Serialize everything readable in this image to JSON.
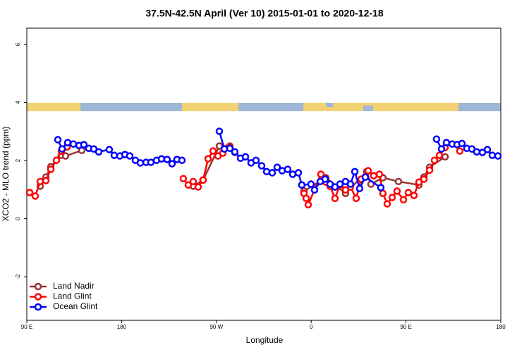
{
  "chart_data": {
    "type": "line",
    "title": "37.5N-42.5N April (Ver 10)   2015-01-01 to 2020-12-18",
    "xlabel": "Longitude",
    "ylabel": "XCO2 - MLO trend (ppm)",
    "xlim": [
      90,
      540
    ],
    "ylim": [
      -3.5,
      6.56
    ],
    "xticks": [
      {
        "value": 90,
        "label": "90 E"
      },
      180,
      {
        "value": 270,
        "label": "90 W"
      },
      {
        "value": 360,
        "label": "0"
      },
      {
        "value": 450,
        "label": "90 E"
      },
      {
        "value": 540,
        "label": "180"
      }
    ],
    "yticks": [
      -2,
      0,
      2,
      4,
      6
    ],
    "legend": "bottom-left",
    "series": [
      {
        "name": "Land Nadir",
        "color": "#993333",
        "x": [
          102.7,
          108.1,
          112.8,
          122.8,
          126.8,
          142.2,
          null,
          248.0,
          257.4,
          272.8,
          282.8,
          287.5,
          null,
          353.2,
          373.9,
          392.6,
          412.7,
          416.7,
          428.1,
          442.9,
          462.3,
          467.0,
          472.4,
          487.1
        ],
        "values": [
          1.12,
          1.43,
          1.79,
          2.18,
          2.16,
          2.35,
          null,
          1.12,
          1.33,
          2.5,
          2.5,
          2.28,
          null,
          0.95,
          1.41,
          0.87,
          1.62,
          1.19,
          1.41,
          1.28,
          1.16,
          1.43,
          1.77,
          2.13
        ]
      },
      {
        "name": "Land Glint",
        "color": "#ff0000",
        "x": [
          92.7,
          98.0,
          102.7,
          108.1,
          112.8,
          118.1,
          122.8,
          128.2,
          null,
          238.6,
          243.3,
          248.0,
          252.7,
          257.4,
          262.1,
          266.8,
          271.5,
          276.1,
          282.2,
          null,
          353.2,
          355.2,
          357.2,
          369.2,
          373.9,
          377.9,
          382.6,
          387.3,
          392.6,
          397.3,
          402.7,
          407.4,
          414.1,
          419.4,
          424.8,
          428.1,
          432.2,
          436.9,
          441.5,
          447.6,
          452.2,
          457.6,
          462.3,
          467.0,
          472.4,
          477.0,
          481.7,
          487.1,
          null,
          501.1
        ],
        "values": [
          0.9,
          0.78,
          1.28,
          1.31,
          1.7,
          2.01,
          2.33,
          2.47,
          null,
          1.38,
          1.16,
          1.28,
          1.09,
          1.33,
          2.06,
          2.33,
          2.16,
          2.26,
          2.47,
          null,
          0.87,
          0.7,
          0.48,
          1.53,
          1.26,
          1.12,
          0.7,
          1.16,
          0.99,
          1.09,
          0.7,
          1.36,
          1.65,
          1.48,
          1.53,
          0.87,
          0.51,
          0.73,
          0.95,
          0.65,
          0.9,
          0.8,
          1.26,
          1.36,
          1.67,
          2.01,
          2.18,
          2.45,
          null,
          2.33
        ]
      },
      {
        "name": "Ocean Glint",
        "color": "#0000ff",
        "x": [
          119.5,
          123.5,
          128.8,
          134.2,
          139.6,
          144.2,
          148.9,
          153.6,
          158.3,
          168.3,
          173.0,
          178.4,
          183.1,
          187.8,
          193.1,
          197.8,
          203.2,
          207.8,
          213.2,
          217.9,
          223.2,
          227.9,
          232.6,
          237.3,
          null,
          272.8,
          277.5,
          282.8,
          287.5,
          292.9,
          297.6,
          302.9,
          307.6,
          313.0,
          317.7,
          323.0,
          327.7,
          332.4,
          337.7,
          342.4,
          347.8,
          351.1,
          359.8,
          363.2,
          368.6,
          373.2,
          377.9,
          382.6,
          387.3,
          392.6,
          397.3,
          401.4,
          406.0,
          411.4,
          426.1,
          null,
          479.0,
          483.7,
          488.4,
          493.8,
          498.5,
          503.1,
          507.8,
          512.5,
          517.2,
          522.6,
          527.3,
          531.9,
          537.3
        ],
        "values": [
          2.72,
          2.4,
          2.62,
          2.57,
          2.52,
          2.55,
          2.42,
          2.4,
          2.3,
          2.38,
          2.18,
          2.16,
          2.21,
          2.16,
          2.01,
          1.92,
          1.94,
          1.94,
          2.01,
          2.06,
          2.04,
          1.89,
          2.04,
          2.01,
          null,
          3.01,
          2.4,
          2.42,
          2.3,
          2.08,
          2.13,
          1.92,
          2.01,
          1.82,
          1.62,
          1.58,
          1.77,
          1.65,
          1.7,
          1.53,
          1.58,
          1.16,
          1.19,
          0.99,
          1.28,
          1.36,
          1.19,
          1.09,
          1.19,
          1.28,
          1.19,
          1.62,
          1.04,
          1.43,
          1.07,
          null,
          2.74,
          2.4,
          2.62,
          2.57,
          2.55,
          2.59,
          2.42,
          2.4,
          2.3,
          2.28,
          2.38,
          2.18,
          2.16
        ]
      }
    ]
  }
}
